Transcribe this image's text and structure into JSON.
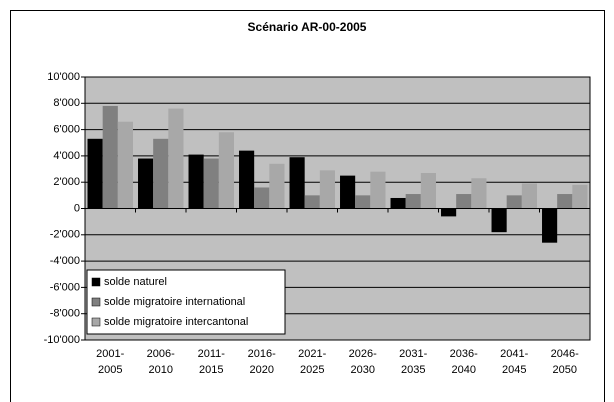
{
  "chart_data": {
    "type": "bar",
    "title": "Scénario AR-00-2005",
    "categories": [
      "2001-2005",
      "2006-2010",
      "2011-2015",
      "2016-2020",
      "2021-2025",
      "2026-2030",
      "2031-2035",
      "2036-2040",
      "2041-2045",
      "2046-2050"
    ],
    "series": [
      {
        "name": "solde naturel",
        "color": "#000000",
        "values": [
          5300,
          3800,
          4100,
          4400,
          3900,
          2500,
          800,
          -600,
          -1800,
          -2600
        ]
      },
      {
        "name": "solde migratoire international",
        "color": "#808080",
        "values": [
          7800,
          5300,
          3800,
          1600,
          1000,
          1000,
          1100,
          1100,
          1000,
          1100
        ]
      },
      {
        "name": "solde migratoire intercantonal",
        "color": "#a8a8a8",
        "values": [
          6600,
          7600,
          5800,
          3400,
          2900,
          2800,
          2700,
          2300,
          1900,
          1800
        ]
      }
    ],
    "ylim": [
      -10000,
      10000
    ],
    "yticks": [
      {
        "value": -10000,
        "label": "-10'000"
      },
      {
        "value": -8000,
        "label": "-8'000"
      },
      {
        "value": -6000,
        "label": "-6'000"
      },
      {
        "value": -4000,
        "label": "-4'000"
      },
      {
        "value": -2000,
        "label": "-2'000"
      },
      0,
      {
        "value": 2000,
        "label": "2'000"
      },
      {
        "value": 4000,
        "label": "4'000"
      },
      {
        "value": 6000,
        "label": "6'000"
      },
      {
        "value": 8000,
        "label": "8'000"
      },
      {
        "value": 10000,
        "label": "10'000"
      }
    ],
    "grid": true,
    "legend": "lower left",
    "plot_background": "#c0c0c0"
  }
}
